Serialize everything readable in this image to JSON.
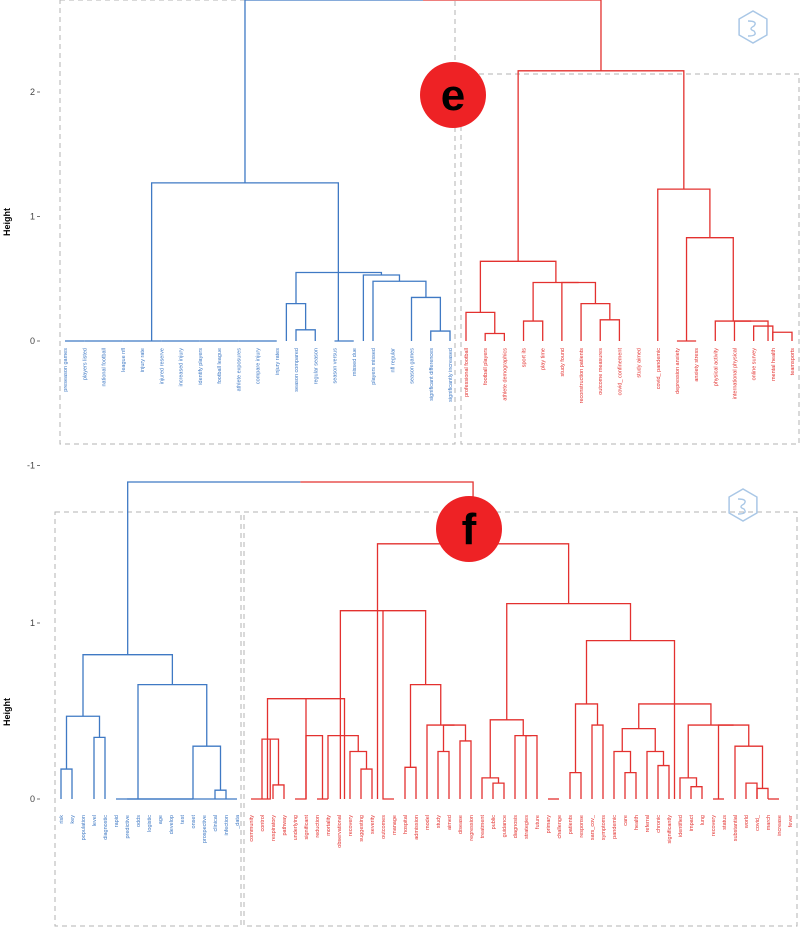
{
  "colors": {
    "blue": "#3f79c4",
    "red": "#e3312f",
    "badge": "#ee2225",
    "box": "#b3b3b3",
    "logo": "#a9c7e6"
  },
  "logo_icon": "hexagon-logo-icon",
  "chart_data": [
    {
      "type": "dendrogram",
      "badge": "e",
      "ylabel": "Height",
      "ylim": [
        -1,
        2.7
      ],
      "yticks": [
        -1,
        0,
        1,
        2
      ],
      "root_height": 2.72,
      "clusters": [
        {
          "color": "blue",
          "leaves": [
            "preseason games",
            "players listed",
            "national football",
            "league nfl",
            "injury rate",
            "injured reserve",
            "increased injury",
            "identify players",
            "football league",
            "athlete exposures",
            "compare injury",
            "injury rates",
            "season compared",
            "regular season",
            "season versus",
            "missed due",
            "players missed",
            "nfl regular",
            "season games",
            "significant differences",
            "significantly increased"
          ],
          "merges": [
            [
              10,
              11,
              0
            ],
            [
              14,
              15,
              0
            ],
            [
              12,
              13,
              0.09
            ],
            [
              11.5,
              12.5,
              0.3
            ],
            [
              19,
              20,
              0.08
            ],
            [
              18,
              19.5,
              0.35
            ],
            [
              16,
              18.75,
              0.48
            ],
            [
              15.5,
              17.375,
              0.53
            ],
            [
              12,
              16.4375,
              0.55
            ],
            [
              4.5,
              14.2,
              1.27
            ],
            [
              0,
              1,
              0
            ],
            [
              1,
              2,
              0
            ],
            [
              2,
              3,
              0
            ],
            [
              3,
              4,
              0
            ],
            [
              4,
              5,
              0
            ],
            [
              5,
              6,
              0
            ],
            [
              6,
              7,
              0
            ],
            [
              7,
              8,
              0
            ],
            [
              8,
              9,
              0
            ],
            [
              9,
              10,
              0
            ]
          ]
        },
        {
          "color": "red",
          "leaves": [
            "professional football",
            "football players",
            "athlete demographics",
            "sport its",
            "play time",
            "study found",
            "reconstruction patients",
            "outcome measures",
            "covid_ confinement",
            "study aimed",
            "covid_ pandemic",
            "depression anxiety",
            "anxiety stress",
            "physical activity",
            "international physical",
            "online survey",
            "mental health",
            "teamsports"
          ],
          "merges": [
            [
              1,
              2,
              0.06
            ],
            [
              0,
              1.5,
              0.23
            ],
            [
              3,
              4,
              0.16
            ],
            [
              7,
              8,
              0.17
            ],
            [
              6,
              7.5,
              0.3
            ],
            [
              5,
              6.75,
              0.47
            ],
            [
              3.5,
              5.875,
              0.47
            ],
            [
              0.75,
              4.6875,
              0.64
            ],
            [
              11,
              12,
              0
            ],
            [
              15,
              16,
              0.12
            ],
            [
              16,
              17,
              0.07
            ],
            [
              14,
              15.75,
              0.16
            ],
            [
              13,
              14.875,
              0.16
            ],
            [
              11.5,
              13.9375,
              0.83
            ],
            [
              10,
              12.7188,
              1.22
            ],
            [
              2.7188,
              11.3594,
              2.17
            ]
          ]
        }
      ]
    },
    {
      "type": "dendrogram",
      "badge": "f",
      "ylabel": "Height",
      "ylim": [
        0,
        1.8
      ],
      "yticks": [
        0,
        1
      ],
      "root_height": 1.8,
      "clusters": [
        {
          "color": "blue",
          "leaves": [
            "risk",
            "key",
            "population",
            "level",
            "diagnostic",
            "rapid",
            "predictive",
            "odds",
            "logistic",
            "age",
            "develop",
            "test",
            "onset",
            "prospective",
            "clinical",
            "infection",
            "_data"
          ],
          "merges": [
            [
              0,
              1,
              0.17
            ],
            [
              3,
              4,
              0.35
            ],
            [
              0.5,
              3.5,
              0.47
            ],
            [
              14,
              15,
              0.05
            ],
            [
              12,
              14.5,
              0.3
            ],
            [
              6,
              7,
              0
            ],
            [
              7,
              8,
              0
            ],
            [
              8,
              9,
              0
            ],
            [
              9,
              10,
              0
            ],
            [
              10,
              11,
              0
            ],
            [
              11,
              12,
              0
            ],
            [
              7,
              13.25,
              0.65
            ],
            [
              2,
              10.125,
              0.82
            ],
            [
              5,
              16,
              0
            ]
          ]
        },
        {
          "color": "red",
          "leaves": [
            "community",
            "control",
            "respiratory",
            "pathway",
            "underlying",
            "significant",
            "reduction",
            "mortality",
            "observational",
            "recovery",
            "suggesting",
            "severity",
            "outcomes",
            "manage",
            "hospital",
            "admission",
            "model",
            "study",
            "aimed",
            "disease",
            "regression",
            "treatment",
            "public",
            "guidance",
            "diagnosis",
            "strategies",
            "future",
            "primary",
            "challenge",
            "patients",
            "response",
            "sars_cov_",
            "symptoms",
            "pandemic",
            "care",
            "health",
            "referral",
            "chronic",
            "significantly",
            "identified",
            "impact",
            "lung",
            "recovery",
            "status",
            "substantial",
            "world",
            "covid_",
            "march",
            "increase",
            "fever"
          ],
          "merges": [
            [
              2,
              3,
              0.08
            ],
            [
              1,
              2.5,
              0.34
            ],
            [
              0,
              1.75,
              0
            ],
            [
              6,
              7,
              0
            ],
            [
              5,
              6.5,
              0.36
            ],
            [
              10,
              11,
              0.17
            ],
            [
              9,
              10.5,
              0.27
            ],
            [
              7,
              9.75,
              0.36
            ],
            [
              1.5,
              8.5,
              0.57
            ],
            [
              14,
              15,
              0.18
            ],
            [
              17,
              18,
              0.27
            ],
            [
              19,
              20,
              0.33
            ],
            [
              17.5,
              19.5,
              0.42
            ],
            [
              16,
              18.5,
              0.42
            ],
            [
              14.5,
              17.25,
              0.65
            ],
            [
              8.125,
              15.875,
              1.07
            ],
            [
              22,
              23,
              0.09
            ],
            [
              21,
              22.5,
              0.12
            ],
            [
              25,
              26,
              0.36
            ],
            [
              24,
              25.5,
              0.36
            ],
            [
              21.75,
              24.75,
              0.45
            ],
            [
              29,
              30,
              0.15
            ],
            [
              31,
              32,
              0.42
            ],
            [
              29.5,
              31.5,
              0.54
            ],
            [
              34,
              35,
              0.15
            ],
            [
              33,
              34.5,
              0.27
            ],
            [
              37,
              38,
              0.19
            ],
            [
              36,
              37.5,
              0.27
            ],
            [
              33.75,
              36.75,
              0.4
            ],
            [
              40,
              41,
              0.07
            ],
            [
              39,
              40.5,
              0.12
            ],
            [
              45,
              46,
              0.09
            ],
            [
              46,
              47,
              0.06
            ],
            [
              47,
              48,
              0
            ],
            [
              44,
              46.5,
              0.3
            ],
            [
              42,
              43,
              0
            ],
            [
              42.5,
              45.25,
              0.42
            ],
            [
              39.75,
              43.875,
              0.42
            ],
            [
              35.25,
              41.8125,
              0.54
            ],
            [
              30.5,
              38.5,
              0.9
            ],
            [
              23.25,
              34.5,
              1.11
            ],
            [
              11.5,
              28.875,
              1.45
            ],
            [
              27,
              28,
              0
            ],
            [
              4,
              5,
              0
            ],
            [
              12,
              13,
              0
            ]
          ]
        }
      ]
    }
  ]
}
